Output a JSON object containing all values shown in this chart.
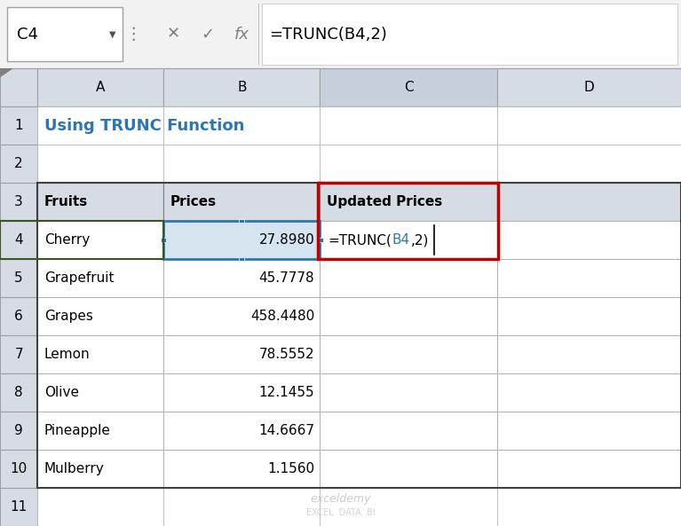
{
  "title": "Using TRUNC Function",
  "title_color": "#2E75B6",
  "formula_bar_cell": "C4",
  "formula_bar_text": "=TRUNC(B4,2)",
  "col_headers": [
    "A",
    "B",
    "C",
    "D"
  ],
  "row_numbers": [
    "1",
    "2",
    "3",
    "4",
    "5",
    "6",
    "7",
    "8",
    "9",
    "10",
    "11"
  ],
  "header_row": [
    "Fruits",
    "Prices",
    "Updated Prices"
  ],
  "fruits": [
    "Cherry",
    "Grapefruit",
    "Grapes",
    "Lemon",
    "Olive",
    "Pineapple",
    "Mulberry"
  ],
  "prices": [
    "27.8980",
    "45.7778",
    "458.4480",
    "78.5552",
    "12.1455",
    "14.6667",
    "1.1560"
  ],
  "formula_cell_text": "=TRUNC(B4,2)",
  "formula_cell_blue": "B4",
  "bg_color": "#FFFFFF",
  "header_bg": "#D6DCE4",
  "col_header_active_bg": "#C6D0DC",
  "cell_selected_bg": "#D6E4F0",
  "grid_color": "#B0B0B0",
  "border_color_dark": "#000000",
  "red_border_color": "#C00000",
  "green_border_color": "#375623",
  "formula_bar_bg": "#FFFFFF",
  "row_num_bg": "#FFFFFF",
  "fig_width": 7.67,
  "fig_height": 5.93
}
